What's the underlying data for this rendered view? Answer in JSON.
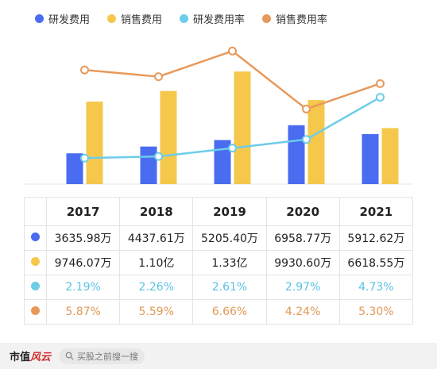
{
  "chart_data": {
    "type": "bar",
    "categories": [
      "2017",
      "2018",
      "2019",
      "2020",
      "2021"
    ],
    "series": [
      {
        "name": "研发费用",
        "kind": "bar",
        "color": "#4a6cf0",
        "values": [
          3635.98,
          4437.61,
          5205.4,
          6958.77,
          5912.62
        ],
        "labels": [
          "3635.98万",
          "4437.61万",
          "5205.40万",
          "6958.77万",
          "5912.62万"
        ]
      },
      {
        "name": "销售费用",
        "kind": "bar",
        "color": "#f5c84c",
        "values": [
          9746.07,
          11000,
          13300,
          9930.6,
          6618.55
        ],
        "labels": [
          "9746.07万",
          "1.10亿",
          "1.33亿",
          "9930.60万",
          "6618.55万"
        ]
      },
      {
        "name": "研发费用率",
        "kind": "line",
        "color": "#6ccde9",
        "values": [
          2.19,
          2.26,
          2.61,
          2.97,
          4.73
        ],
        "labels": [
          "2.19%",
          "2.26%",
          "2.61%",
          "2.97%",
          "4.73%"
        ]
      },
      {
        "name": "销售费用率",
        "kind": "line",
        "color": "#e8995a",
        "values": [
          5.87,
          5.59,
          6.66,
          4.24,
          5.3
        ],
        "labels": [
          "5.87%",
          "5.59%",
          "6.66%",
          "4.24%",
          "5.30%"
        ]
      }
    ],
    "legend": "top-left",
    "grid": false
  },
  "footer": {
    "brand_main": "市值",
    "brand_accent": "风云",
    "search_placeholder": "买股之前搜一搜"
  }
}
